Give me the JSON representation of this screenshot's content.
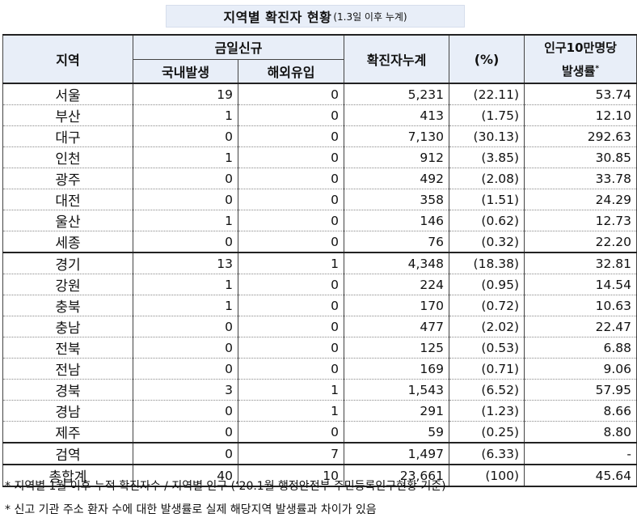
{
  "title": {
    "main": "지역별 확진자 현황",
    "sub": "(1.3일 이후 누계)"
  },
  "headers": {
    "region": "지역",
    "new_today": "금일신규",
    "domestic": "국내발생",
    "overseas": "해외유입",
    "cumulative": "확진자누계",
    "percent": "(%)",
    "rate_line1": "인구10만명당",
    "rate_line2": "발생률",
    "rate_mark": "*"
  },
  "rows": [
    {
      "region": "서울",
      "domestic": "19",
      "overseas": "0",
      "cumulative": "5,231",
      "percent": "(22.11)",
      "rate": "53.74"
    },
    {
      "region": "부산",
      "domestic": "1",
      "overseas": "0",
      "cumulative": "413",
      "percent": "(1.75)",
      "rate": "12.10"
    },
    {
      "region": "대구",
      "domestic": "0",
      "overseas": "0",
      "cumulative": "7,130",
      "percent": "(30.13)",
      "rate": "292.63"
    },
    {
      "region": "인천",
      "domestic": "1",
      "overseas": "0",
      "cumulative": "912",
      "percent": "(3.85)",
      "rate": "30.85"
    },
    {
      "region": "광주",
      "domestic": "0",
      "overseas": "0",
      "cumulative": "492",
      "percent": "(2.08)",
      "rate": "33.78"
    },
    {
      "region": "대전",
      "domestic": "0",
      "overseas": "0",
      "cumulative": "358",
      "percent": "(1.51)",
      "rate": "24.29"
    },
    {
      "region": "울산",
      "domestic": "1",
      "overseas": "0",
      "cumulative": "146",
      "percent": "(0.62)",
      "rate": "12.73"
    },
    {
      "region": "세종",
      "domestic": "0",
      "overseas": "0",
      "cumulative": "76",
      "percent": "(0.32)",
      "rate": "22.20"
    },
    {
      "region": "경기",
      "domestic": "13",
      "overseas": "1",
      "cumulative": "4,348",
      "percent": "(18.38)",
      "rate": "32.81"
    },
    {
      "region": "강원",
      "domestic": "1",
      "overseas": "0",
      "cumulative": "224",
      "percent": "(0.95)",
      "rate": "14.54"
    },
    {
      "region": "충북",
      "domestic": "1",
      "overseas": "0",
      "cumulative": "170",
      "percent": "(0.72)",
      "rate": "10.63"
    },
    {
      "region": "충남",
      "domestic": "0",
      "overseas": "0",
      "cumulative": "477",
      "percent": "(2.02)",
      "rate": "22.47"
    },
    {
      "region": "전북",
      "domestic": "0",
      "overseas": "0",
      "cumulative": "125",
      "percent": "(0.53)",
      "rate": "6.88"
    },
    {
      "region": "전남",
      "domestic": "0",
      "overseas": "0",
      "cumulative": "169",
      "percent": "(0.71)",
      "rate": "9.06"
    },
    {
      "region": "경북",
      "domestic": "3",
      "overseas": "1",
      "cumulative": "1,543",
      "percent": "(6.52)",
      "rate": "57.95"
    },
    {
      "region": "경남",
      "domestic": "0",
      "overseas": "1",
      "cumulative": "291",
      "percent": "(1.23)",
      "rate": "8.66"
    },
    {
      "region": "제주",
      "domestic": "0",
      "overseas": "0",
      "cumulative": "59",
      "percent": "(0.25)",
      "rate": "8.80"
    },
    {
      "region": "검역",
      "domestic": "0",
      "overseas": "7",
      "cumulative": "1,497",
      "percent": "(6.33)",
      "rate": "-"
    }
  ],
  "total": {
    "region": "총합계",
    "domestic": "40",
    "overseas": "10",
    "cumulative": "23,661",
    "percent": "(100)",
    "rate": "45.64"
  },
  "notes": [
    "*  지역별  1월  이후  누적  확진자수  /  지역별  인구  (‘20.1월  행정안전부  주민등록인구현황  기준)",
    "*  신고  기관  주소  환자  수에  대한  발생률로  실제  해당지역  발생률과  차이가  있음"
  ]
}
